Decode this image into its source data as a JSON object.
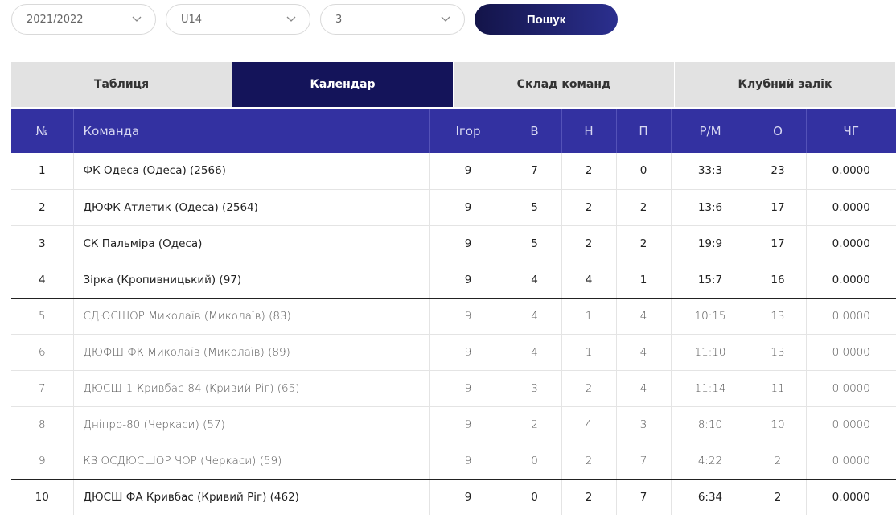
{
  "filters": {
    "season": "2021/2022",
    "age": "U14",
    "group": "3",
    "search_label": "Пошук"
  },
  "tabs": [
    "Таблиця",
    "Календар",
    "Склад команд",
    "Клубний залік"
  ],
  "active_tab": 1,
  "table": {
    "headers": [
      "№",
      "Команда",
      "Ігор",
      "В",
      "Н",
      "П",
      "Р/М",
      "О",
      "ЧГ"
    ],
    "rows": [
      [
        "1",
        "ФК Одеса (Одеса) (2566)",
        "9",
        "7",
        "2",
        "0",
        "33:3",
        "23",
        "0.0000"
      ],
      [
        "2",
        "ДЮФК Атлетик (Одеса) (2564)",
        "9",
        "5",
        "2",
        "2",
        "13:6",
        "17",
        "0.0000"
      ],
      [
        "3",
        "СК Пальміра (Одеса)",
        "9",
        "5",
        "2",
        "2",
        "19:9",
        "17",
        "0.0000"
      ],
      [
        "4",
        "Зірка (Кропивницький) (97)",
        "9",
        "4",
        "4",
        "1",
        "15:7",
        "16",
        "0.0000"
      ],
      [
        "5",
        "СДЮСШОР Миколаїв (Миколаїв) (83)",
        "9",
        "4",
        "1",
        "4",
        "10:15",
        "13",
        "0.0000"
      ],
      [
        "6",
        "ДЮФШ ФК Миколаїв (Миколаїв) (89)",
        "9",
        "4",
        "1",
        "4",
        "11:10",
        "13",
        "0.0000"
      ],
      [
        "7",
        "ДЮСШ-1-Кривбас-84 (Кривий Ріг) (65)",
        "9",
        "3",
        "2",
        "4",
        "11:14",
        "11",
        "0.0000"
      ],
      [
        "8",
        "Дніпро-80 (Черкаси) (57)",
        "9",
        "2",
        "4",
        "3",
        "8:10",
        "10",
        "0.0000"
      ],
      [
        "9",
        "КЗ ОСДЮСШОР ЧОР (Черкаси) (59)",
        "9",
        "0",
        "2",
        "7",
        "4:22",
        "2",
        "0.0000"
      ],
      [
        "10",
        "ДЮСШ ФА Кривбас (Кривий Ріг) (462)",
        "9",
        "0",
        "2",
        "7",
        "6:34",
        "2",
        "0.0000"
      ]
    ]
  },
  "icons": {
    "dropdown": "chevron-down-icon"
  },
  "colors": {
    "header_bg": "#3331a1",
    "active_tab_bg": "#14145a",
    "button_bg": "#1e2070"
  }
}
